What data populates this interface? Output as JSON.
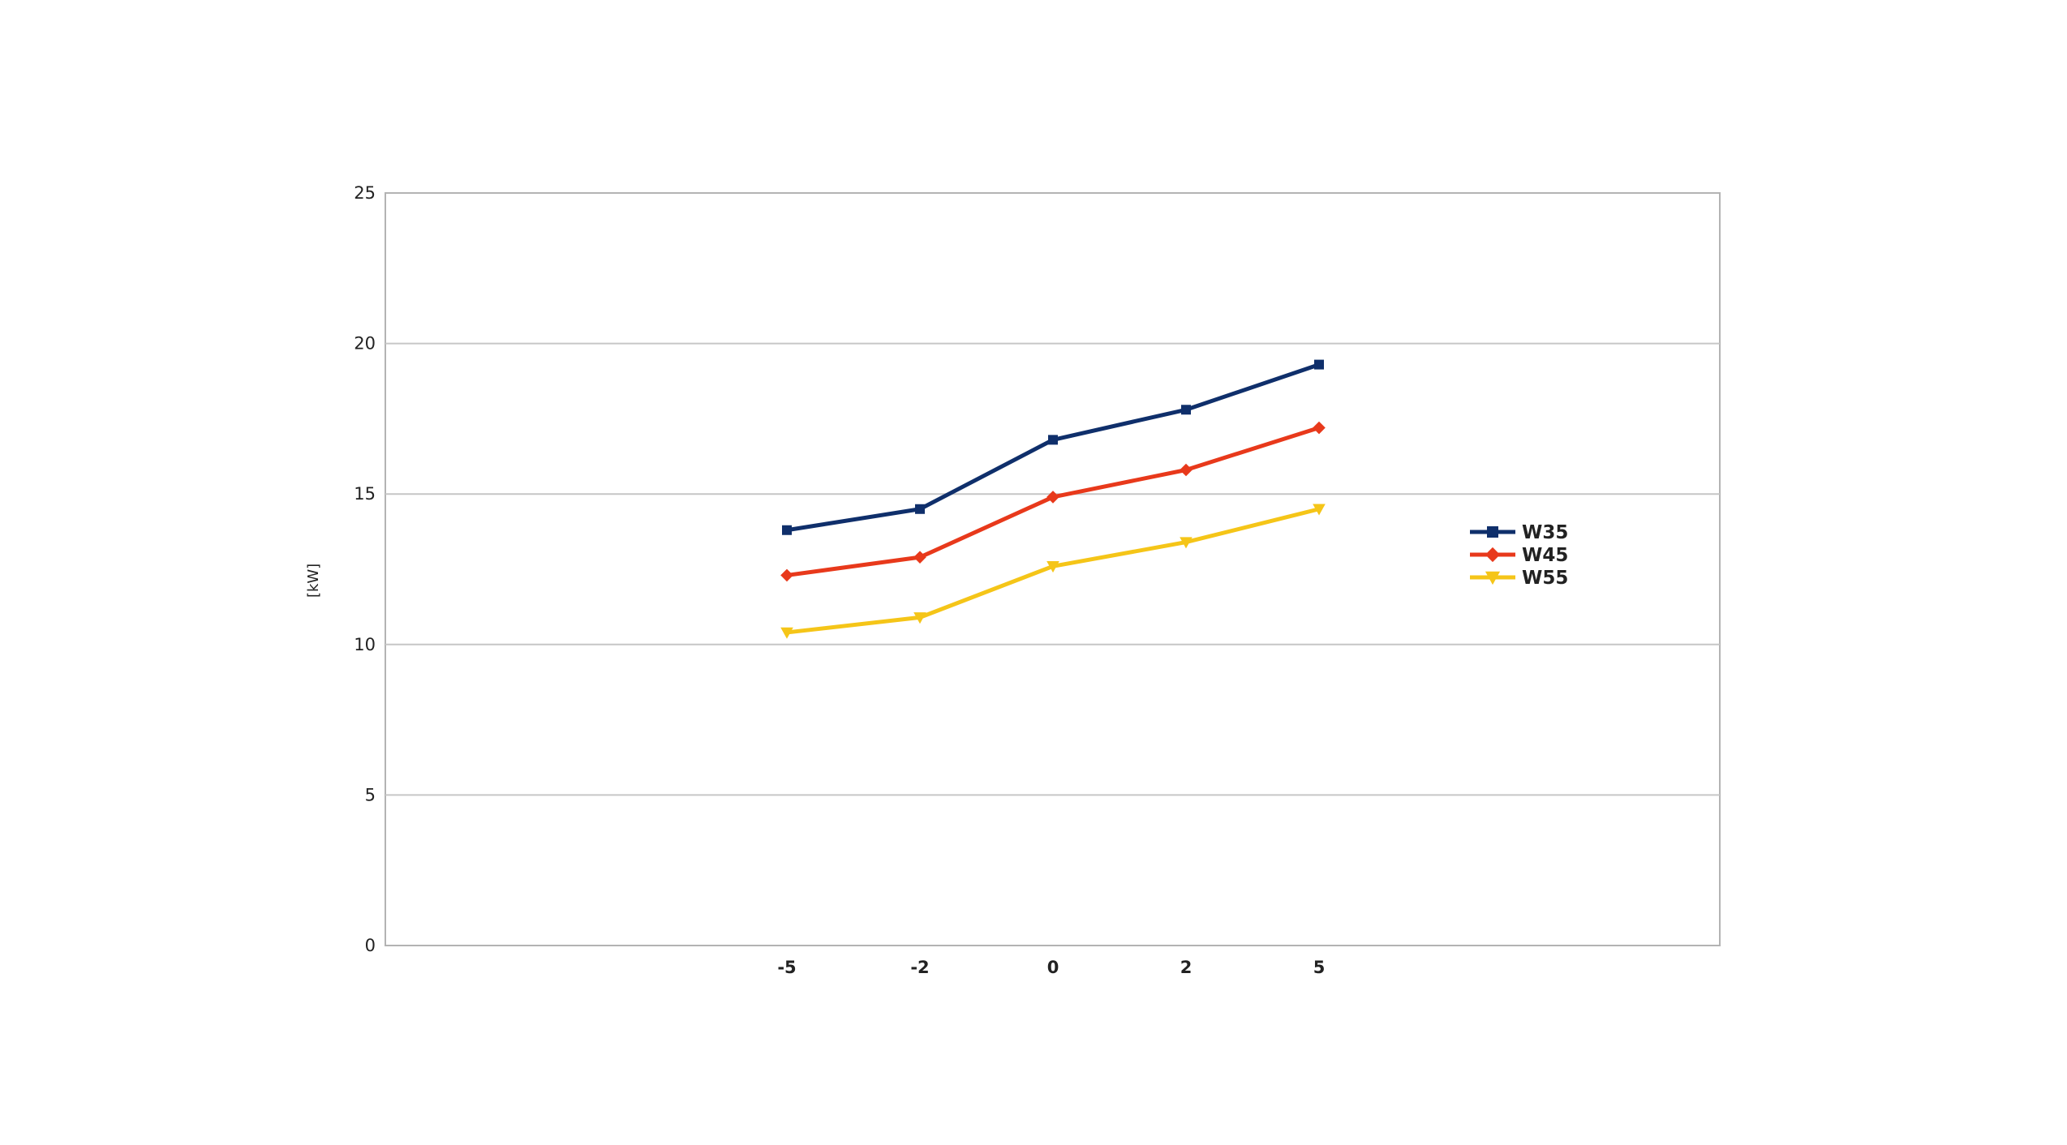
{
  "chart_data": {
    "type": "line",
    "title": "",
    "xlabel": "",
    "ylabel": "[kW]",
    "categories": [
      "-5",
      "-2",
      "0",
      "2",
      "5"
    ],
    "ylim": [
      0,
      25
    ],
    "yticks": [
      "0",
      "5",
      "10",
      "15",
      "20",
      "25"
    ],
    "grid": "horizontal",
    "legend_position": "right",
    "series": [
      {
        "name": "W35",
        "color": "#0f2f6b",
        "marker": "square",
        "values": [
          13.8,
          14.5,
          16.8,
          17.8,
          19.3
        ]
      },
      {
        "name": "W45",
        "color": "#e8391b",
        "marker": "diamond",
        "values": [
          12.3,
          12.9,
          14.9,
          15.8,
          17.2
        ]
      },
      {
        "name": "W55",
        "color": "#f5c518",
        "marker": "triangle-down",
        "values": [
          10.4,
          10.9,
          12.6,
          13.4,
          14.5
        ]
      }
    ]
  }
}
